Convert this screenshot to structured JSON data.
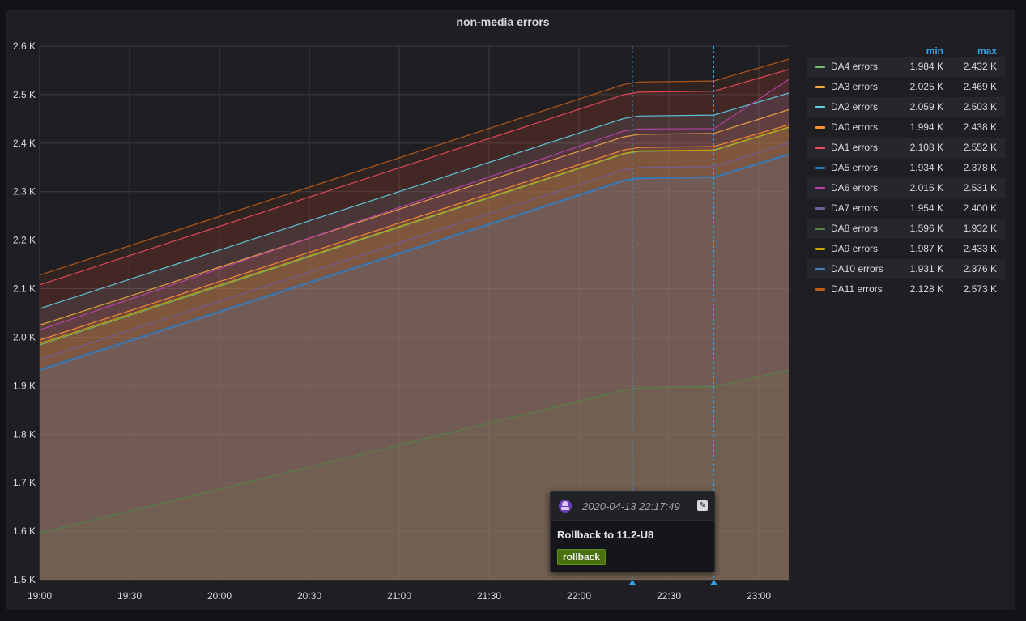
{
  "panel": {
    "title": "non-media errors"
  },
  "legend": {
    "min_header": "min",
    "max_header": "max"
  },
  "annotation": {
    "time": "2020-04-13 22:17:49",
    "text": "Rollback to 11.2-U8",
    "tag": "rollback",
    "marker_times": [
      "22:17:49",
      "22:45"
    ],
    "edit_icon": "pencil-icon"
  },
  "colors": {
    "background": "#111217",
    "panel": "#1f1f23",
    "accent": "#33a2e5",
    "annotation": "#33a2e5"
  },
  "chart_data": {
    "type": "area",
    "title": "non-media errors",
    "xlabel": "",
    "ylabel": "",
    "x_ticks": [
      "19:00",
      "19:30",
      "20:00",
      "20:30",
      "21:00",
      "21:30",
      "22:00",
      "22:30",
      "23:00"
    ],
    "x_range": [
      "19:00",
      "23:10"
    ],
    "y_ticks": [
      "1.5 K",
      "1.6 K",
      "1.7 K",
      "1.8 K",
      "1.9 K",
      "2.0 K",
      "2.1 K",
      "2.2 K",
      "2.3 K",
      "2.4 K",
      "2.5 K",
      "2.6 K"
    ],
    "ylim": [
      1500,
      2600
    ],
    "grid": true,
    "legend_position": "right",
    "x": [
      "19:00",
      "22:15",
      "22:20",
      "22:45",
      "23:10"
    ],
    "series": [
      {
        "name": "DA4 errors",
        "color": "#73bf69",
        "min": "1.984 K",
        "max": "2.432 K",
        "values": [
          1984,
          2378,
          2383,
          2385,
          2432
        ]
      },
      {
        "name": "DA3 errors",
        "color": "#f2a841",
        "min": "2.025 K",
        "max": "2.469 K",
        "values": [
          2025,
          2413,
          2418,
          2420,
          2469
        ]
      },
      {
        "name": "DA2 errors",
        "color": "#5fd4e8",
        "min": "2.059 K",
        "max": "2.503 K",
        "values": [
          2059,
          2451,
          2456,
          2458,
          2503
        ]
      },
      {
        "name": "DA0 errors",
        "color": "#ff9230",
        "min": "1.994 K",
        "max": "2.438 K",
        "values": [
          1994,
          2386,
          2391,
          2393,
          2438
        ]
      },
      {
        "name": "DA1 errors",
        "color": "#f2495c",
        "min": "2.108 K",
        "max": "2.552 K",
        "values": [
          2108,
          2500,
          2505,
          2507,
          2552
        ]
      },
      {
        "name": "DA5 errors",
        "color": "#1f78c1",
        "min": "1.934 K",
        "max": "2.378 K",
        "values": [
          1934,
          2324,
          2329,
          2331,
          2378
        ]
      },
      {
        "name": "DA6 errors",
        "color": "#ba43a9",
        "min": "2.015 K",
        "max": "2.531 K",
        "values": [
          2015,
          2425,
          2429,
          2430,
          2531
        ]
      },
      {
        "name": "DA7 errors",
        "color": "#705da0",
        "min": "1.954 K",
        "max": "2.400 K",
        "values": [
          1954,
          2345,
          2350,
          2352,
          2400
        ]
      },
      {
        "name": "DA8 errors",
        "color": "#508642",
        "min": "1.596 K",
        "max": "1.932 K",
        "values": [
          1596,
          1891,
          1896,
          1898,
          1932
        ]
      },
      {
        "name": "DA9 errors",
        "color": "#cca300",
        "min": "1.987 K",
        "max": "2.433 K",
        "values": [
          1987,
          2379,
          2384,
          2386,
          2433
        ]
      },
      {
        "name": "DA10 errors",
        "color": "#447ebc",
        "min": "1.931 K",
        "max": "2.376 K",
        "values": [
          1931,
          2322,
          2327,
          2329,
          2376
        ]
      },
      {
        "name": "DA11 errors",
        "color": "#c15c17",
        "min": "2.128 K",
        "max": "2.573 K",
        "values": [
          2128,
          2521,
          2526,
          2528,
          2573
        ]
      }
    ]
  }
}
